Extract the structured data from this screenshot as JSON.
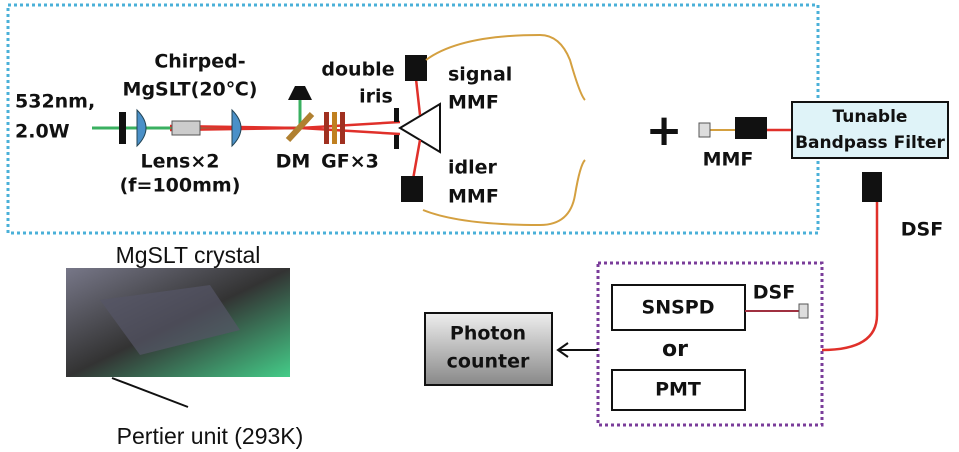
{
  "source": {
    "line1": "532nm,",
    "line2": "2.0W"
  },
  "crystal_label": {
    "line1": "Chirped-",
    "line2": "MgSLT(20℃)"
  },
  "lens_label": {
    "line1": "Lens×2",
    "line2": "(f=100mm)"
  },
  "dm_label": "DM",
  "gf_label": "GF×3",
  "iris_label": {
    "line1": "double",
    "line2": "iris"
  },
  "signal_label": {
    "line1": "signal",
    "line2": "MMF"
  },
  "idler_label": {
    "line1": "idler",
    "line2": "MMF"
  },
  "plus": "+",
  "mmf_label": "MMF",
  "filter": {
    "line1": "Tunable",
    "line2": "Bandpass Filter"
  },
  "dsf_label": "DSF",
  "photo_caption": "MgSLT crystal",
  "photo_note": "Pertier unit (293K)",
  "detectors": {
    "snspd": "SNSPD",
    "dsf": "DSF",
    "or": "or",
    "pmt": "PMT"
  },
  "counter": {
    "line1": "Photon",
    "line2": "counter"
  }
}
